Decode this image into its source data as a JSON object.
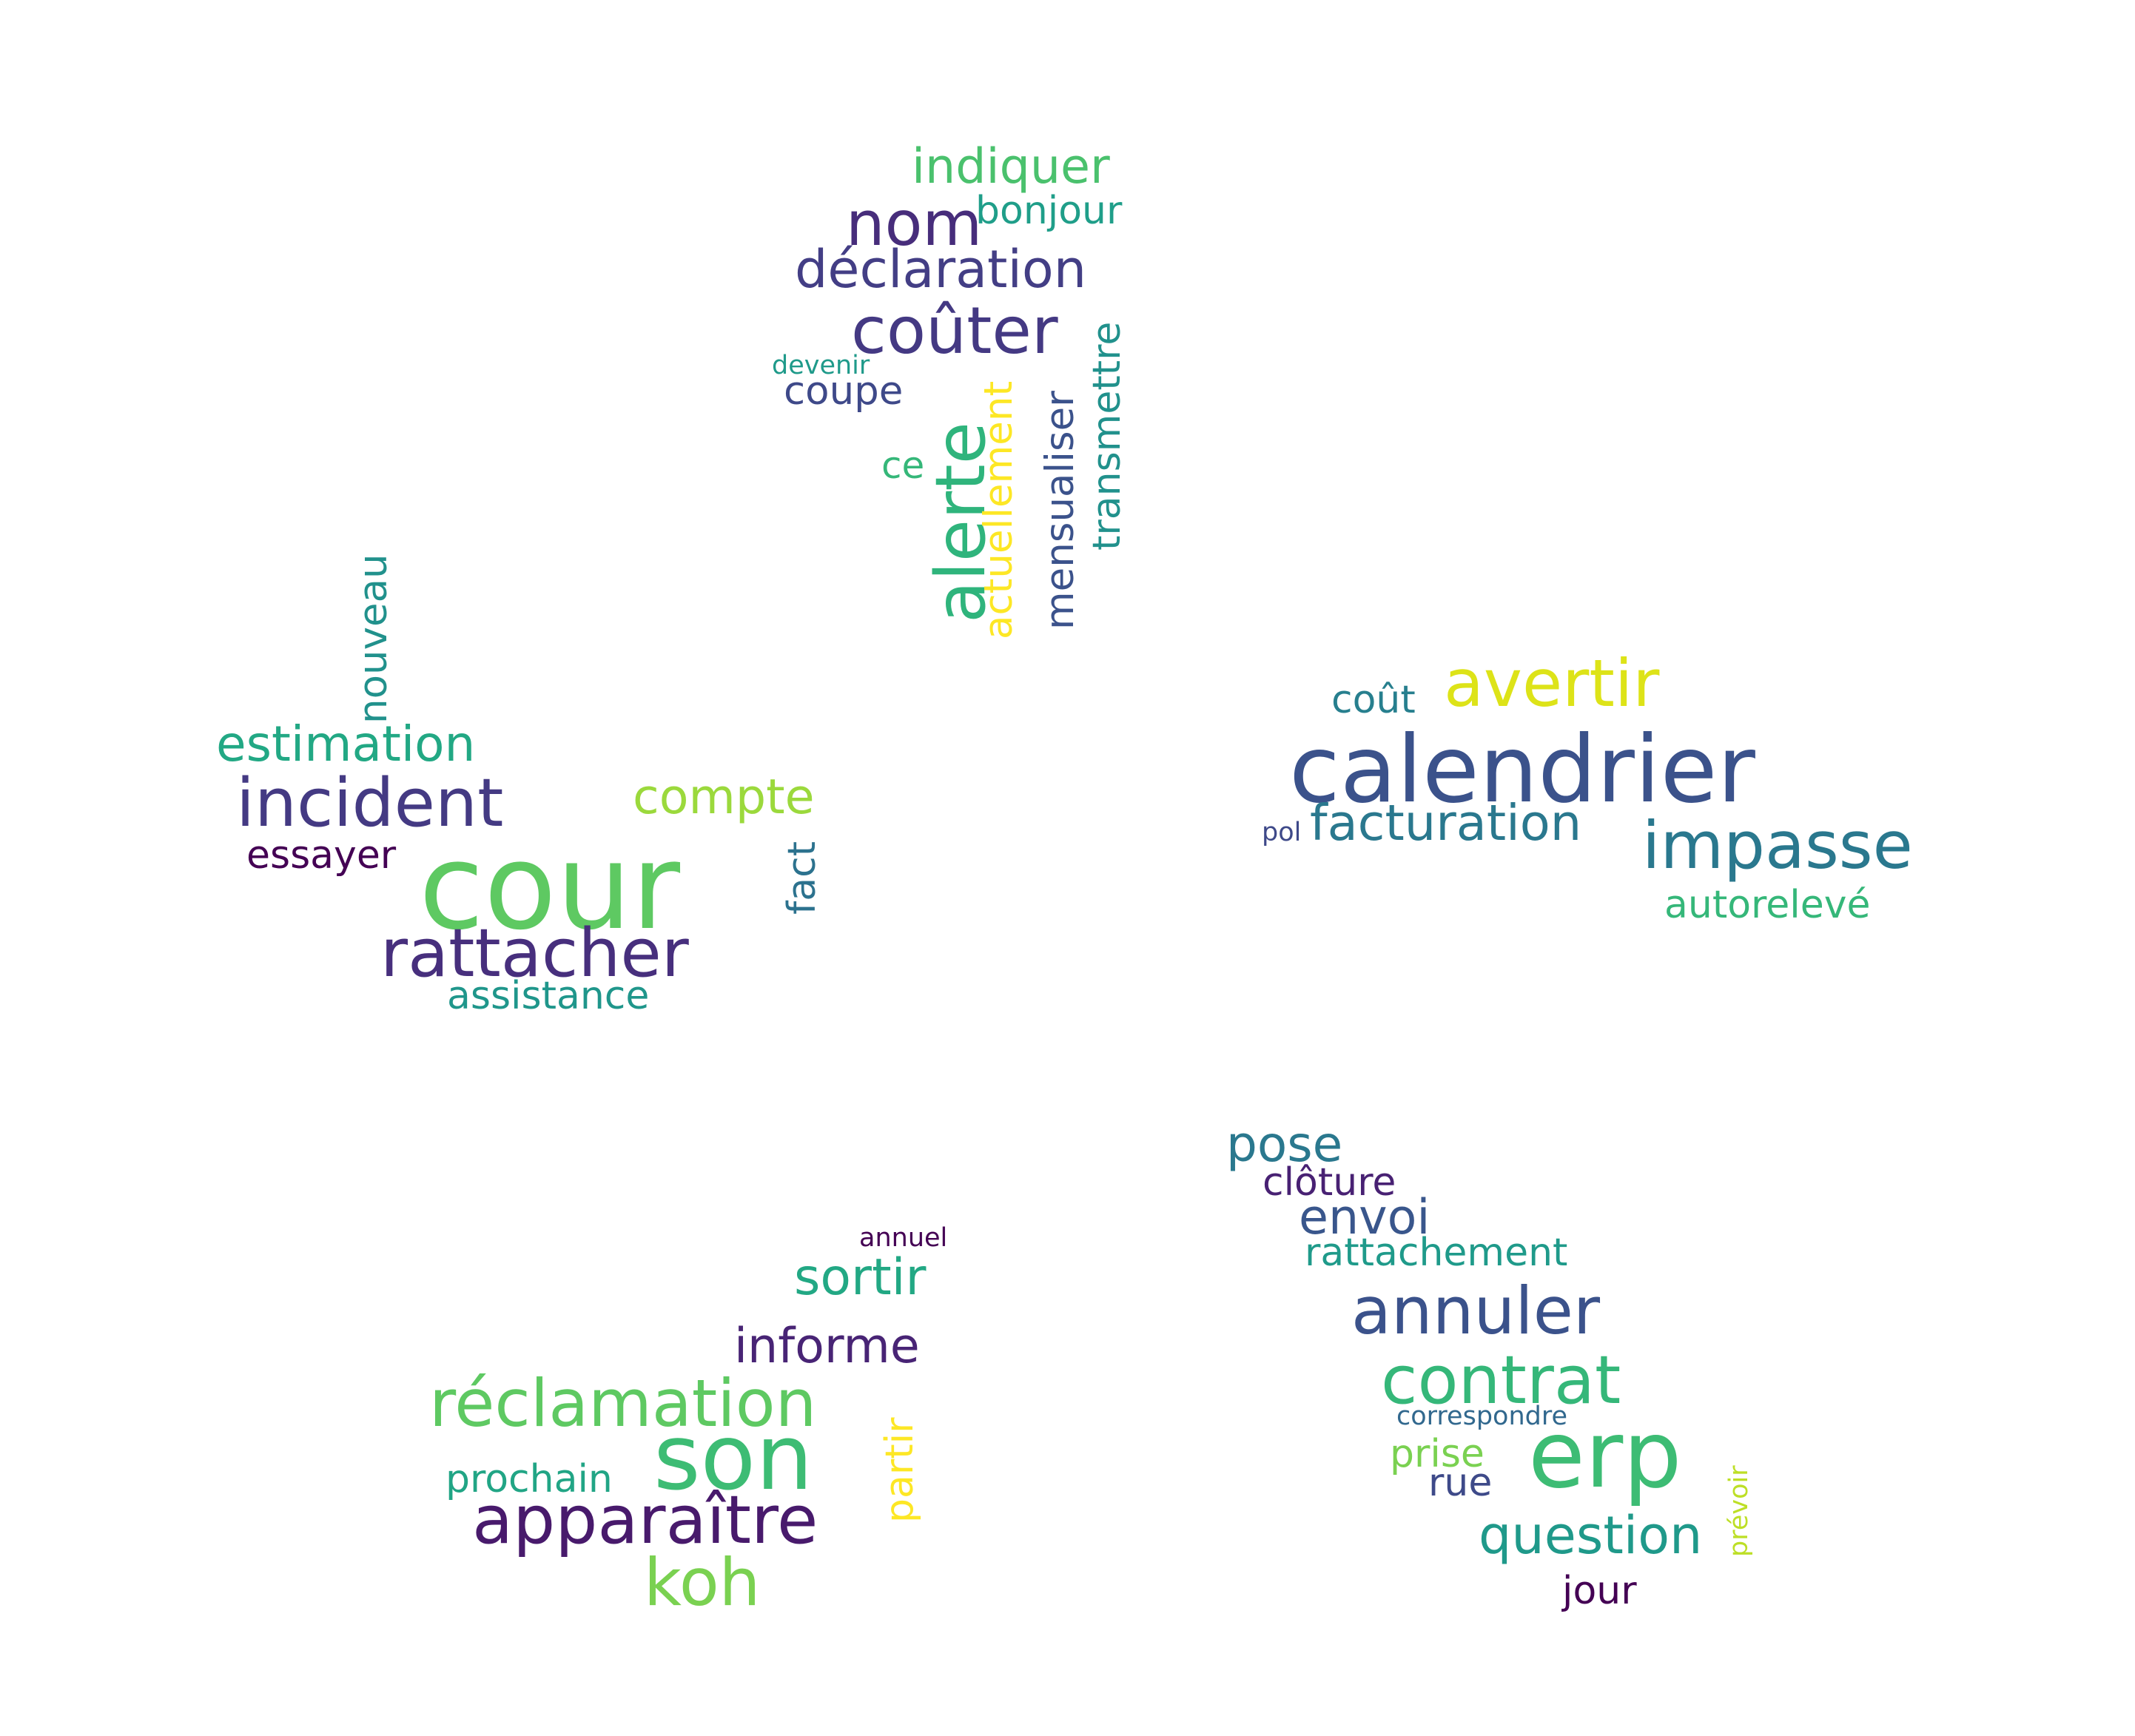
{
  "words": [
    {
      "text": "indiquer",
      "color": "#4ac16d"
    },
    {
      "text": "bonjour",
      "color": "#1f9e89"
    },
    {
      "text": "nom",
      "color": "#472d7b"
    },
    {
      "text": "déclaration",
      "color": "#433e85"
    },
    {
      "text": "coûter",
      "color": "#443983"
    },
    {
      "text": "devenir",
      "color": "#1f9a8a"
    },
    {
      "text": "coupe",
      "color": "#3e4989"
    },
    {
      "text": "ce",
      "color": "#35b779"
    },
    {
      "text": "alerte",
      "color": "#2fb47c"
    },
    {
      "text": "actuellement",
      "color": "#fde725"
    },
    {
      "text": "mensualiser",
      "color": "#3b528b"
    },
    {
      "text": "transmettre",
      "color": "#21918c"
    },
    {
      "text": "nouveau",
      "color": "#21918c"
    },
    {
      "text": "estimation",
      "color": "#22a884"
    },
    {
      "text": "incident",
      "color": "#443a83"
    },
    {
      "text": "compte",
      "color": "#9bd93c"
    },
    {
      "text": "essayer",
      "color": "#440154"
    },
    {
      "text": "cour",
      "color": "#5ec962"
    },
    {
      "text": "fact",
      "color": "#2c728e"
    },
    {
      "text": "rattacher",
      "color": "#472f7d"
    },
    {
      "text": "assistance",
      "color": "#1f968b"
    },
    {
      "text": "coût",
      "color": "#277f8e"
    },
    {
      "text": "avertir",
      "color": "#dde318"
    },
    {
      "text": "calendrier",
      "color": "#3b528b"
    },
    {
      "text": "pol",
      "color": "#3e4989"
    },
    {
      "text": "facturation",
      "color": "#2a788e"
    },
    {
      "text": "impasse",
      "color": "#2a788e"
    },
    {
      "text": "autorelevé",
      "color": "#35b779"
    },
    {
      "text": "pose",
      "color": "#2a788e"
    },
    {
      "text": "clôture",
      "color": "#482173"
    },
    {
      "text": "envoi",
      "color": "#39568c"
    },
    {
      "text": "rattachement",
      "color": "#1f9a8a"
    },
    {
      "text": "annuler",
      "color": "#3b528b"
    },
    {
      "text": "contrat",
      "color": "#35b779"
    },
    {
      "text": "correspondre",
      "color": "#31688e"
    },
    {
      "text": "prise",
      "color": "#7ad151"
    },
    {
      "text": "erp",
      "color": "#3dbc74"
    },
    {
      "text": "rue",
      "color": "#3e4a89"
    },
    {
      "text": "question",
      "color": "#1f998a"
    },
    {
      "text": "prévoir",
      "color": "#bddf26"
    },
    {
      "text": "jour",
      "color": "#440154"
    },
    {
      "text": "annuel",
      "color": "#440154"
    },
    {
      "text": "sortir",
      "color": "#22a884"
    },
    {
      "text": "informe",
      "color": "#482475"
    },
    {
      "text": "réclamation",
      "color": "#5ec962"
    },
    {
      "text": "partir",
      "color": "#fde725"
    },
    {
      "text": "son",
      "color": "#3dbc74"
    },
    {
      "text": "prochain",
      "color": "#21a585"
    },
    {
      "text": "apparaître",
      "color": "#481a6c"
    },
    {
      "text": "koh",
      "color": "#7ad151"
    }
  ]
}
